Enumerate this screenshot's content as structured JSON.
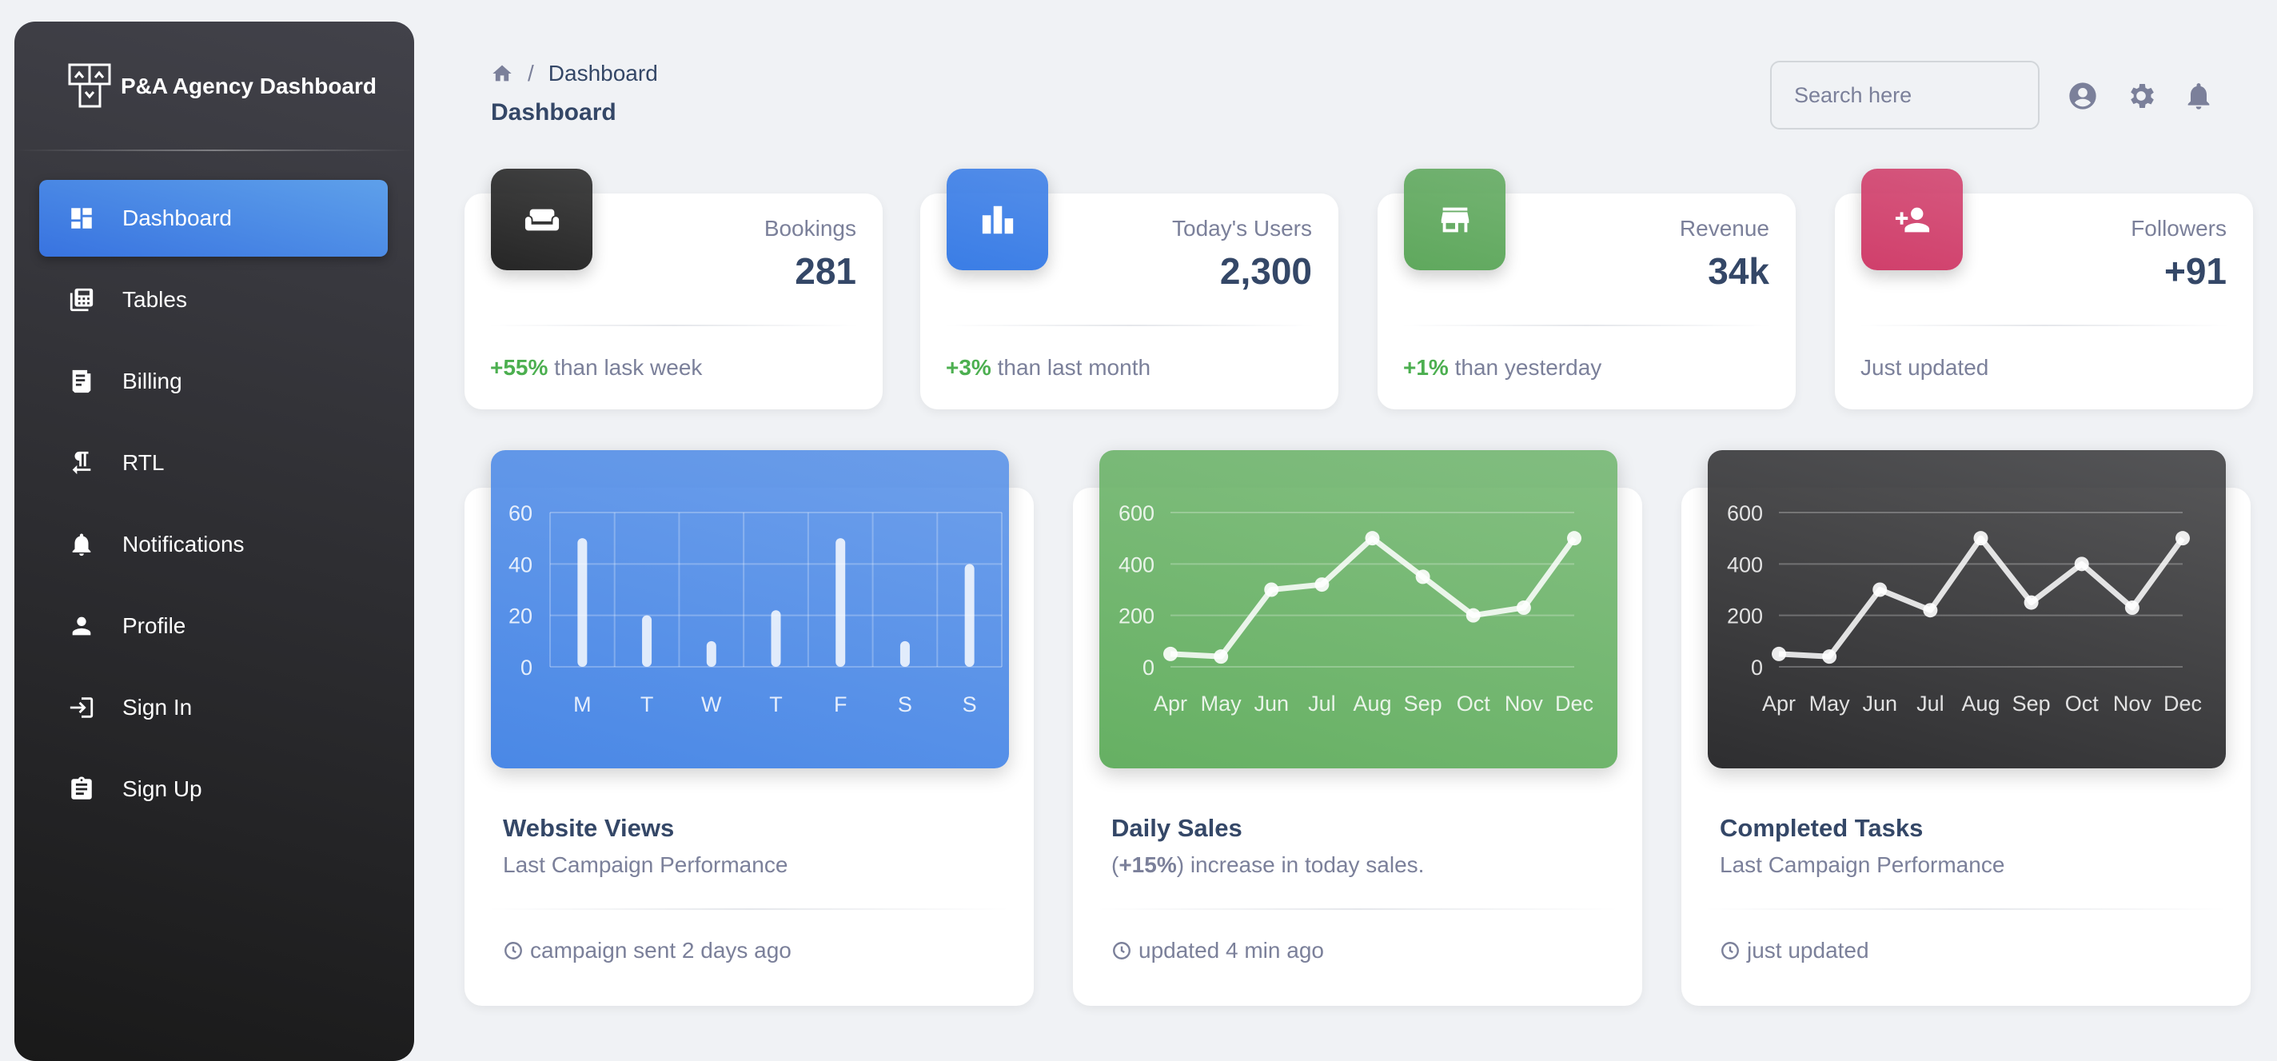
{
  "brand": {
    "title": "P&A Agency Dashboard"
  },
  "sidebar": {
    "items": [
      {
        "label": "Dashboard",
        "icon": "dashboard-icon",
        "active": true
      },
      {
        "label": "Tables",
        "icon": "table-icon"
      },
      {
        "label": "Billing",
        "icon": "receipt-icon"
      },
      {
        "label": "RTL",
        "icon": "rtl-icon"
      },
      {
        "label": "Notifications",
        "icon": "bell-icon"
      },
      {
        "label": "Profile",
        "icon": "person-icon"
      },
      {
        "label": "Sign In",
        "icon": "login-icon"
      },
      {
        "label": "Sign Up",
        "icon": "assignment-icon"
      }
    ]
  },
  "header": {
    "breadcrumb": "Dashboard",
    "title": "Dashboard",
    "search_placeholder": "Search here"
  },
  "stats": [
    {
      "label": "Bookings",
      "value": "281",
      "delta": "+55%",
      "text": " than lask week",
      "icon": "weekend-icon",
      "color": "#262626"
    },
    {
      "label": "Today's Users",
      "value": "2,300",
      "delta": "+3%",
      "text": " than last month",
      "icon": "leaderboard-icon",
      "color": "#3a7de6"
    },
    {
      "label": "Revenue",
      "value": "34k",
      "delta": "+1%",
      "text": " than yesterday",
      "icon": "store-icon",
      "color": "#5fa85d"
    },
    {
      "label": "Followers",
      "value": "+91",
      "delta": "",
      "text": "Just updated",
      "icon": "person-add-icon",
      "color": "#d03f6b"
    }
  ],
  "charts": [
    {
      "title": "Website Views",
      "subtitle_pre": "",
      "subtitle_bold": "",
      "subtitle": "Last Campaign Performance",
      "footer": "campaign sent 2 days ago"
    },
    {
      "title": "Daily Sales",
      "subtitle_pre": "(",
      "subtitle_bold": "+15%",
      "subtitle": ") increase in today sales.",
      "footer": "updated 4 min ago"
    },
    {
      "title": "Completed Tasks",
      "subtitle_pre": "",
      "subtitle_bold": "",
      "subtitle": "Last Campaign Performance",
      "footer": "just updated"
    }
  ],
  "chart_data": [
    {
      "type": "bar",
      "categories": [
        "M",
        "T",
        "W",
        "T",
        "F",
        "S",
        "S"
      ],
      "values": [
        50,
        20,
        10,
        22,
        50,
        10,
        40
      ],
      "ylim": [
        0,
        60
      ],
      "yticks": [
        0,
        20,
        40,
        60
      ],
      "grid": true,
      "background": "#4a88e6"
    },
    {
      "type": "line",
      "categories": [
        "Apr",
        "May",
        "Jun",
        "Jul",
        "Aug",
        "Sep",
        "Oct",
        "Nov",
        "Dec"
      ],
      "values": [
        50,
        40,
        300,
        320,
        500,
        350,
        200,
        230,
        500
      ],
      "ylim": [
        0,
        600
      ],
      "yticks": [
        0,
        200,
        400,
        600
      ],
      "grid": true,
      "background": "#66b063"
    },
    {
      "type": "line",
      "categories": [
        "Apr",
        "May",
        "Jun",
        "Jul",
        "Aug",
        "Sep",
        "Oct",
        "Nov",
        "Dec"
      ],
      "values": [
        50,
        40,
        300,
        220,
        500,
        250,
        400,
        230,
        500
      ],
      "ylim": [
        0,
        600
      ],
      "yticks": [
        0,
        200,
        400,
        600
      ],
      "grid": true,
      "background": "#2e2e30"
    }
  ]
}
